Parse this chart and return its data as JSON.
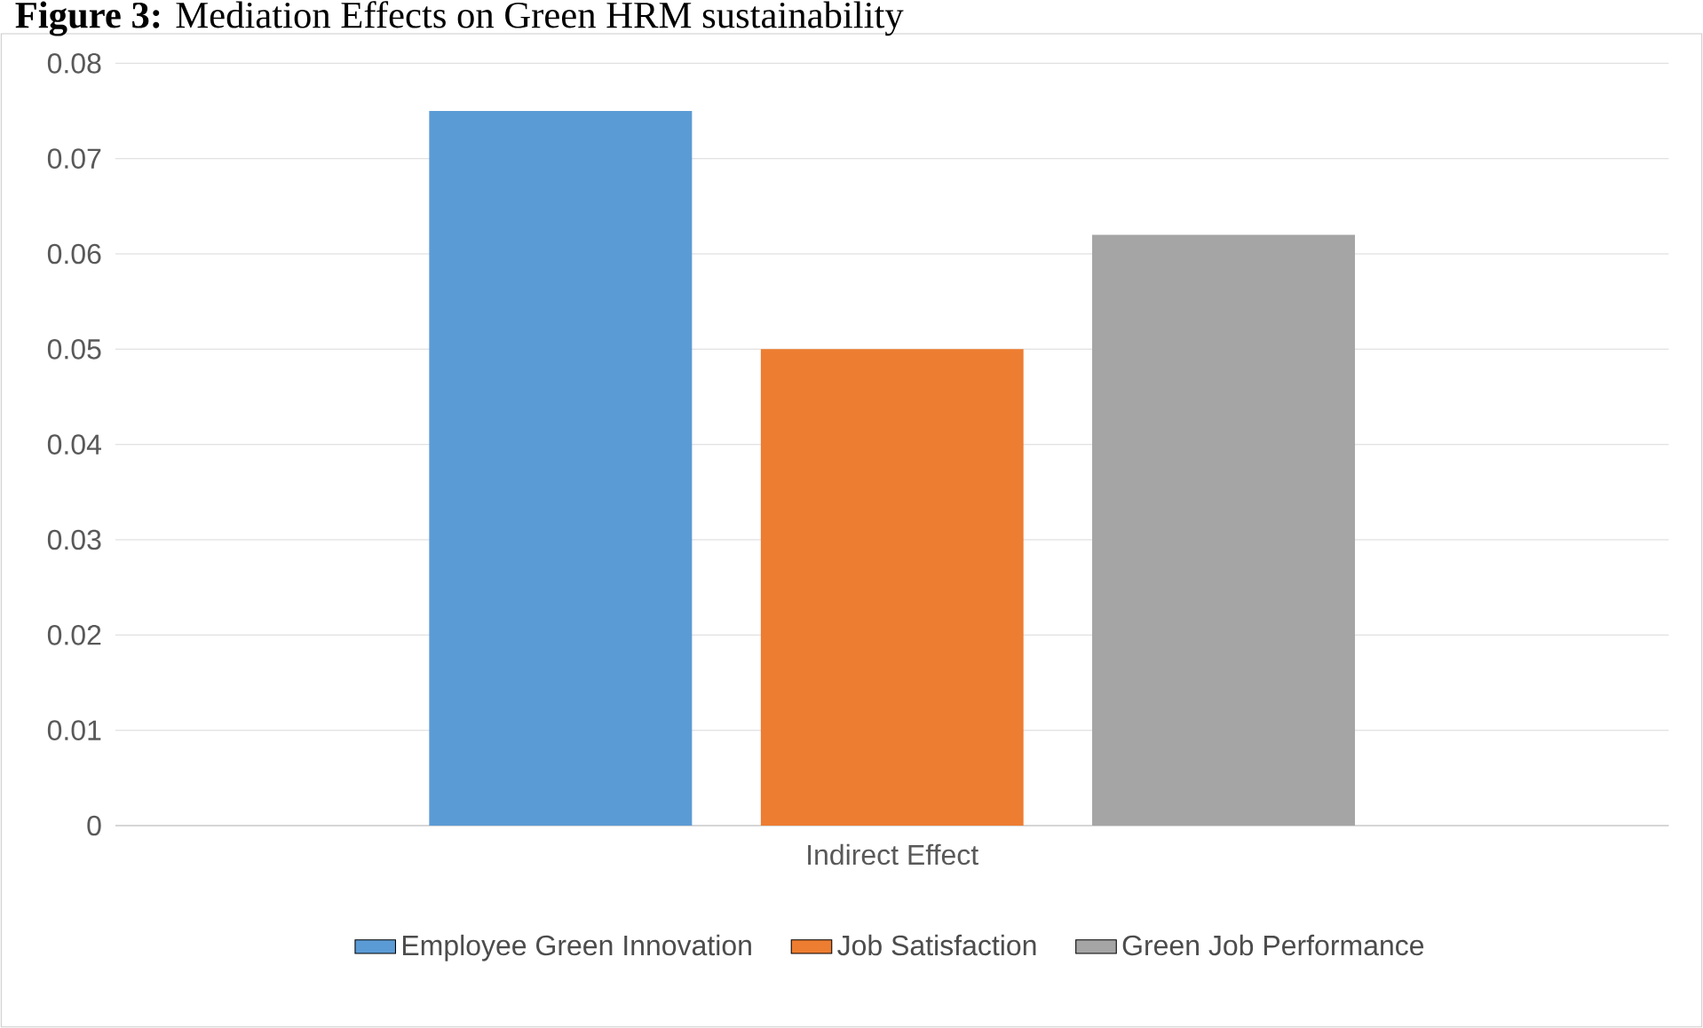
{
  "chart_data": {
    "type": "bar",
    "title": "**Figure 3:** Mediation Effects on Green HRM sustainability",
    "categories": [
      "Indirect Effect"
    ],
    "series": [
      {
        "name": "Employee Green Innovation",
        "color": "#5b9bd5",
        "values": [
          0.075
        ]
      },
      {
        "name": "Job Satisfaction",
        "color": "#ed7d31",
        "values": [
          0.05
        ]
      },
      {
        "name": "Green Job Performance",
        "color": "#a5a5a5",
        "values": [
          0.062
        ]
      }
    ],
    "ylim": [
      0,
      0.08
    ],
    "yticks": [
      0,
      0.01,
      0.02,
      0.03,
      0.04,
      0.05,
      0.06,
      0.07,
      0.08
    ],
    "grid": "y",
    "legend": "bottom"
  }
}
